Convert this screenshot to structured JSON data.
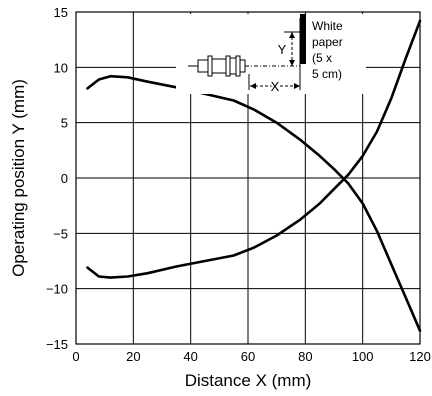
{
  "chart_data": {
    "type": "line",
    "xlabel": "Distance X (mm)",
    "ylabel": "Operating position Y  (mm)",
    "xlim": [
      0,
      120
    ],
    "ylim": [
      -15,
      15
    ],
    "x_ticks": [
      0,
      20,
      40,
      60,
      80,
      100,
      120
    ],
    "y_ticks": [
      15,
      10,
      5,
      0,
      -5,
      -10,
      -15
    ],
    "y_tick_labels": [
      "15",
      "10",
      "5",
      "0",
      "−5",
      "−10",
      "−15"
    ],
    "grid": true,
    "series": [
      {
        "points": [
          [
            4,
            8.1
          ],
          [
            8,
            8.9
          ],
          [
            12,
            9.2
          ],
          [
            18,
            9.1
          ],
          [
            25,
            8.7
          ],
          [
            35,
            8.2
          ],
          [
            45,
            7.6
          ],
          [
            55,
            7.0
          ],
          [
            62,
            6.2
          ],
          [
            70,
            5.0
          ],
          [
            78,
            3.5
          ],
          [
            85,
            2.0
          ],
          [
            90,
            0.8
          ],
          [
            95,
            -0.5
          ],
          [
            100,
            -2.3
          ],
          [
            105,
            -4.8
          ],
          [
            110,
            -7.8
          ],
          [
            115,
            -10.8
          ],
          [
            120,
            -13.8
          ]
        ]
      },
      {
        "points": [
          [
            4,
            -8.1
          ],
          [
            8,
            -8.9
          ],
          [
            12,
            -9.0
          ],
          [
            18,
            -8.9
          ],
          [
            25,
            -8.6
          ],
          [
            35,
            -8.0
          ],
          [
            45,
            -7.5
          ],
          [
            55,
            -7.0
          ],
          [
            62,
            -6.3
          ],
          [
            70,
            -5.2
          ],
          [
            78,
            -3.8
          ],
          [
            85,
            -2.3
          ],
          [
            90,
            -1.0
          ],
          [
            95,
            0.3
          ],
          [
            100,
            2.0
          ],
          [
            105,
            4.2
          ],
          [
            110,
            7.2
          ],
          [
            115,
            10.8
          ],
          [
            120,
            14.2
          ]
        ]
      }
    ],
    "inset": {
      "label_x": "X",
      "label_y": "Y",
      "target_lines": [
        "White",
        "paper",
        "(5 x",
        "5 cm)"
      ]
    }
  }
}
